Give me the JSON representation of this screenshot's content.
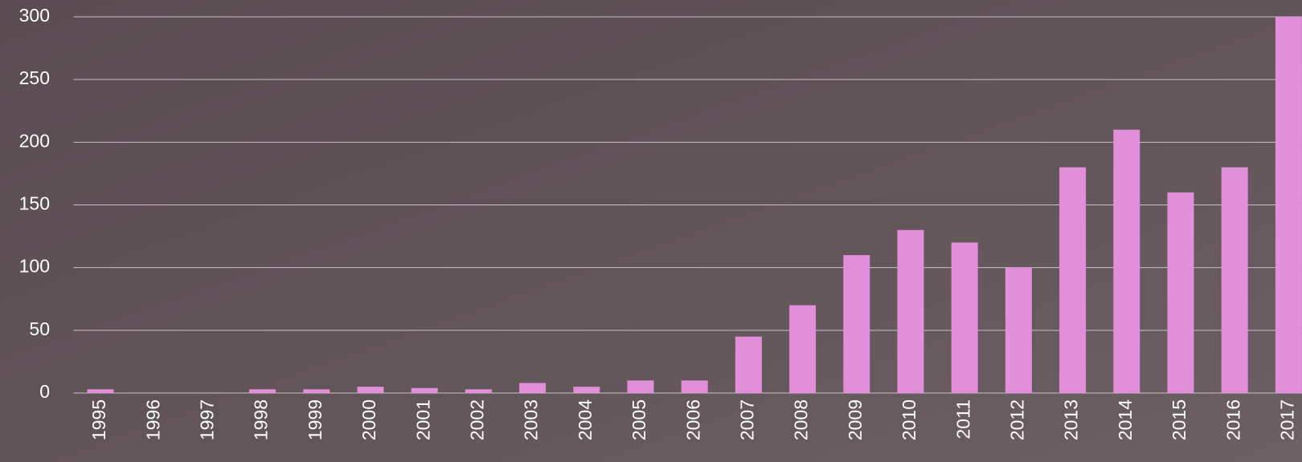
{
  "chart_data": {
    "type": "bar",
    "categories": [
      "1995",
      "1996",
      "1997",
      "1998",
      "1999",
      "2000",
      "2001",
      "2002",
      "2003",
      "2004",
      "2005",
      "2006",
      "2007",
      "2008",
      "2009",
      "2010",
      "2011",
      "2012",
      "2013",
      "2014",
      "2015",
      "2016",
      "2017"
    ],
    "values": [
      3,
      0,
      0,
      3,
      3,
      5,
      4,
      3,
      8,
      5,
      10,
      10,
      45,
      70,
      110,
      130,
      120,
      100,
      180,
      210,
      160,
      180,
      300
    ],
    "color": "#e08fd8",
    "ylim": [
      0,
      300
    ],
    "yticks": [
      0,
      50,
      100,
      150,
      200,
      250,
      300
    ],
    "grid": true
  }
}
